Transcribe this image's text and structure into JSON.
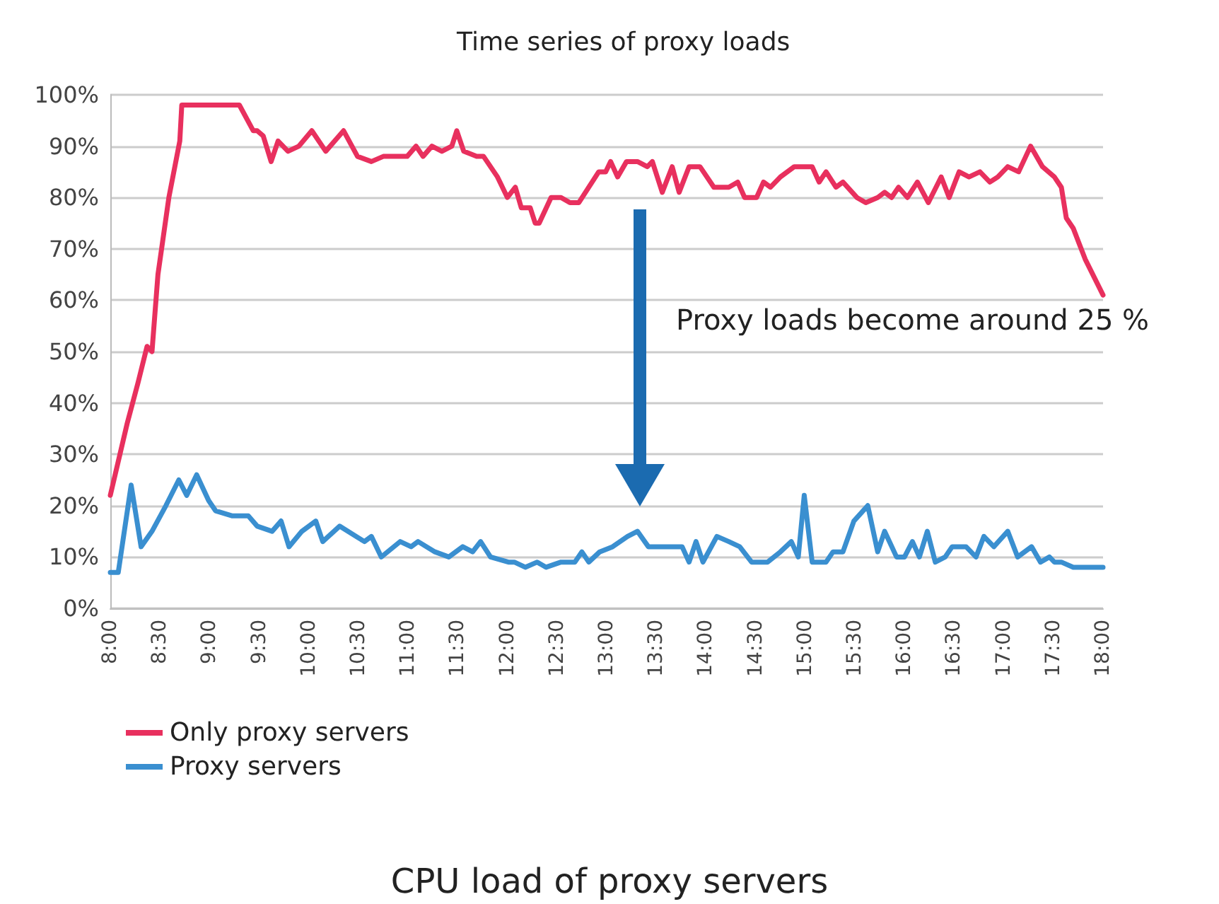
{
  "chart_data": {
    "type": "line",
    "title": "Time series of proxy loads",
    "annotations": [
      "Proxy loads become around 25 %",
      "CPU load of proxy servers"
    ],
    "xlim": [
      8,
      18
    ],
    "xticks": [
      {
        "value": 8,
        "label": "8:00"
      },
      {
        "value": 8.5,
        "label": "8:30"
      },
      {
        "value": 9,
        "label": "9:00"
      },
      {
        "value": 9.5,
        "label": "9:30"
      },
      {
        "value": 10,
        "label": "10:00"
      },
      {
        "value": 10.5,
        "label": "10:30"
      },
      {
        "value": 11,
        "label": "11:00"
      },
      {
        "value": 11.5,
        "label": "11:30"
      },
      {
        "value": 12,
        "label": "12:00"
      },
      {
        "value": 12.5,
        "label": "12:30"
      },
      {
        "value": 13,
        "label": "13:00"
      },
      {
        "value": 13.5,
        "label": "13:30"
      },
      {
        "value": 14,
        "label": "14:00"
      },
      {
        "value": 14.5,
        "label": "14:30"
      },
      {
        "value": 15,
        "label": "15:00"
      },
      {
        "value": 15.5,
        "label": "15:30"
      },
      {
        "value": 16,
        "label": "16:00"
      },
      {
        "value": 16.5,
        "label": "16:30"
      },
      {
        "value": 17,
        "label": "17:00"
      },
      {
        "value": 17.5,
        "label": "17:30"
      },
      {
        "value": 18,
        "label": "18:00"
      }
    ],
    "ylim": [
      0,
      100
    ],
    "yticks": [
      {
        "value": 0,
        "label": "0%"
      },
      {
        "value": 10,
        "label": "10%"
      },
      {
        "value": 20,
        "label": "20%"
      },
      {
        "value": 30,
        "label": "30%"
      },
      {
        "value": 40,
        "label": "40%"
      },
      {
        "value": 50,
        "label": "50%"
      },
      {
        "value": 60,
        "label": "60%"
      },
      {
        "value": 70,
        "label": "70%"
      },
      {
        "value": 80,
        "label": "80%"
      },
      {
        "value": 90,
        "label": "90%"
      },
      {
        "value": 100,
        "label": "100%"
      }
    ],
    "grid": "y",
    "legend": "bottom left",
    "marker": "none",
    "line_style": "solid",
    "series": [
      {
        "name": "Only proxy servers",
        "color": "#e8305e",
        "x": [
          8.0,
          8.17,
          8.28,
          8.37,
          8.42,
          8.48,
          8.59,
          8.7,
          8.72,
          9.3,
          9.44,
          9.48,
          9.54,
          9.62,
          9.69,
          9.79,
          9.9,
          10.03,
          10.17,
          10.35,
          10.49,
          10.63,
          10.75,
          10.99,
          11.08,
          11.15,
          11.24,
          11.34,
          11.44,
          11.49,
          11.56,
          11.69,
          11.76,
          11.9,
          12.0,
          12.08,
          12.14,
          12.23,
          12.28,
          12.32,
          12.44,
          12.54,
          12.63,
          12.72,
          12.82,
          12.92,
          12.99,
          13.04,
          13.11,
          13.2,
          13.31,
          13.41,
          13.46,
          13.56,
          13.66,
          13.73,
          13.83,
          13.94,
          14.08,
          14.23,
          14.32,
          14.39,
          14.51,
          14.58,
          14.65,
          14.75,
          14.89,
          15.07,
          15.14,
          15.21,
          15.31,
          15.38,
          15.52,
          15.61,
          15.73,
          15.8,
          15.87,
          15.94,
          16.03,
          16.13,
          16.24,
          16.37,
          16.45,
          16.55,
          16.65,
          16.76,
          16.86,
          16.94,
          17.04,
          17.15,
          17.27,
          17.39,
          17.51,
          17.58,
          17.63,
          17.7,
          17.82,
          18.0
        ],
        "values": [
          22,
          36,
          44,
          51,
          50,
          65,
          80,
          91,
          98,
          98,
          93,
          93,
          92,
          87,
          91,
          89,
          90,
          93,
          89,
          93,
          88,
          87,
          88,
          88,
          90,
          88,
          90,
          89,
          90,
          93,
          89,
          88,
          88,
          84,
          80,
          82,
          78,
          78,
          75,
          75,
          80,
          80,
          79,
          79,
          82,
          85,
          85,
          87,
          84,
          87,
          87,
          86,
          87,
          81,
          86,
          81,
          86,
          86,
          82,
          82,
          83,
          80,
          80,
          83,
          82,
          84,
          86,
          86,
          83,
          85,
          82,
          83,
          80,
          79,
          80,
          81,
          80,
          82,
          80,
          83,
          79,
          84,
          80,
          85,
          84,
          85,
          83,
          84,
          86,
          85,
          90,
          86,
          84,
          82,
          76,
          74,
          68,
          61
        ]
      },
      {
        "name": "Proxy servers",
        "color": "#3a8fd0",
        "x": [
          8.0,
          8.08,
          8.21,
          8.31,
          8.42,
          8.56,
          8.69,
          8.77,
          8.87,
          8.99,
          9.06,
          9.23,
          9.39,
          9.48,
          9.63,
          9.72,
          9.8,
          9.93,
          10.07,
          10.14,
          10.31,
          10.56,
          10.63,
          10.73,
          10.92,
          11.03,
          11.1,
          11.27,
          11.41,
          11.55,
          11.65,
          11.73,
          11.83,
          12.01,
          12.07,
          12.18,
          12.3,
          12.39,
          12.54,
          12.68,
          12.75,
          12.82,
          12.93,
          13.06,
          13.21,
          13.31,
          13.42,
          13.66,
          13.76,
          13.83,
          13.9,
          13.97,
          14.11,
          14.23,
          14.34,
          14.46,
          14.62,
          14.75,
          14.86,
          14.93,
          14.99,
          15.07,
          15.21,
          15.28,
          15.38,
          15.49,
          15.63,
          15.73,
          15.8,
          15.92,
          16.0,
          16.08,
          16.15,
          16.23,
          16.31,
          16.41,
          16.48,
          16.62,
          16.72,
          16.8,
          16.9,
          17.04,
          17.14,
          17.28,
          17.37,
          17.46,
          17.51,
          17.58,
          17.7,
          17.82,
          18.0
        ],
        "values": [
          7,
          7,
          24,
          12,
          15,
          20,
          25,
          22,
          26,
          21,
          19,
          18,
          18,
          16,
          15,
          17,
          12,
          15,
          17,
          13,
          16,
          13,
          14,
          10,
          13,
          12,
          13,
          11,
          10,
          12,
          11,
          13,
          10,
          9,
          9,
          8,
          9,
          8,
          9,
          9,
          11,
          9,
          11,
          12,
          14,
          15,
          12,
          12,
          12,
          9,
          13,
          9,
          14,
          13,
          12,
          9,
          9,
          11,
          13,
          10,
          22,
          9,
          9,
          11,
          11,
          17,
          20,
          11,
          15,
          10,
          10,
          13,
          10,
          15,
          9,
          10,
          12,
          12,
          10,
          14,
          12,
          15,
          10,
          12,
          9,
          10,
          9,
          9,
          8,
          8,
          8
        ]
      }
    ]
  }
}
